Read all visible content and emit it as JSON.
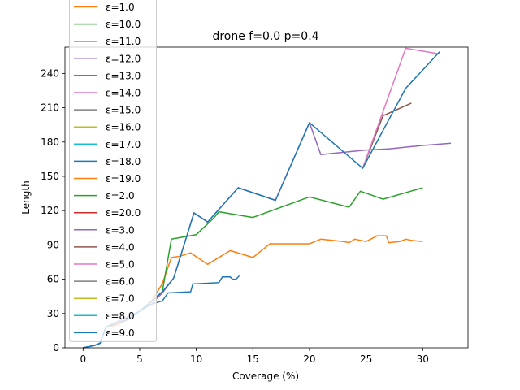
{
  "chart_data": {
    "type": "line",
    "title": "drone f=0.0 p=0.4",
    "xlabel": "Coverage (%)",
    "ylabel": "Length",
    "xlim": [
      -1.6,
      34.0
    ],
    "ylim": [
      0,
      263
    ],
    "xticks": [
      0,
      5,
      10,
      15,
      20,
      25,
      30
    ],
    "yticks": [
      0,
      30,
      60,
      90,
      120,
      150,
      180,
      210,
      240
    ],
    "grid": false,
    "legend_position": "upper-left",
    "series": [
      {
        "name": "ε=1.0",
        "color": "#ff7f0e",
        "points": [
          [
            0,
            0
          ],
          [
            1,
            2
          ],
          [
            1.5,
            4
          ],
          [
            2,
            18
          ],
          [
            3,
            20
          ],
          [
            4,
            25
          ],
          [
            5,
            32
          ],
          [
            6,
            40
          ],
          [
            7,
            56
          ],
          [
            7.8,
            79
          ],
          [
            8.5,
            80
          ],
          [
            9.5,
            83
          ],
          [
            11,
            73
          ],
          [
            13,
            85
          ],
          [
            15,
            79
          ],
          [
            16.5,
            91
          ],
          [
            19,
            91
          ],
          [
            20,
            91
          ],
          [
            21,
            95
          ],
          [
            23,
            93
          ],
          [
            23.5,
            92
          ],
          [
            24,
            95
          ],
          [
            25,
            93
          ],
          [
            26,
            98
          ],
          [
            26.8,
            98
          ],
          [
            27,
            92
          ],
          [
            28,
            93
          ],
          [
            28.5,
            95
          ],
          [
            29,
            94
          ],
          [
            30,
            93
          ]
        ]
      },
      {
        "name": "ε=10.0",
        "color": "#2ca02c",
        "points": [
          [
            0,
            0
          ],
          [
            1,
            2
          ],
          [
            1.5,
            4
          ],
          [
            2,
            18
          ],
          [
            5,
            32
          ],
          [
            7,
            49
          ],
          [
            7.8,
            95
          ],
          [
            10,
            99
          ],
          [
            11.5,
            113
          ],
          [
            12,
            119
          ],
          [
            15,
            114
          ],
          [
            20,
            132
          ],
          [
            23.5,
            123
          ],
          [
            24.5,
            137
          ],
          [
            26.5,
            130
          ],
          [
            30,
            140
          ]
        ]
      },
      {
        "name": "ε=11.0",
        "color": "#d62728",
        "points": []
      },
      {
        "name": "ε=12.0",
        "color": "#9467bd",
        "points": [
          [
            0,
            0
          ],
          [
            1,
            2
          ],
          [
            1.5,
            4
          ],
          [
            2,
            18
          ],
          [
            5,
            32
          ],
          [
            6,
            38
          ],
          [
            7,
            48
          ],
          [
            8,
            61
          ],
          [
            9.8,
            118
          ],
          [
            11,
            110
          ],
          [
            13.7,
            140
          ],
          [
            17,
            129
          ],
          [
            20,
            197
          ],
          [
            21,
            169
          ],
          [
            24,
            172
          ],
          [
            25,
            173
          ],
          [
            27,
            174
          ],
          [
            29,
            176
          ],
          [
            30,
            177
          ],
          [
            32.5,
            179
          ]
        ]
      },
      {
        "name": "ε=13.0",
        "color": "#8c564b",
        "points": [
          [
            24.7,
            157
          ],
          [
            26.5,
            203
          ],
          [
            29,
            214
          ]
        ]
      },
      {
        "name": "ε=14.0",
        "color": "#e377c2",
        "points": [
          [
            24.7,
            157
          ],
          [
            28.5,
            262
          ],
          [
            31.5,
            257
          ]
        ]
      },
      {
        "name": "ε=15.0",
        "color": "#7f7f7f",
        "points": []
      },
      {
        "name": "ε=16.0",
        "color": "#bcbd22",
        "points": []
      },
      {
        "name": "ε=17.0",
        "color": "#17becf",
        "points": []
      },
      {
        "name": "ε=18.0",
        "color": "#1f77b4",
        "points": [
          [
            0,
            0
          ],
          [
            1,
            2
          ],
          [
            1.5,
            4
          ],
          [
            2,
            18
          ],
          [
            4,
            25
          ],
          [
            5,
            32
          ],
          [
            7,
            49
          ],
          [
            8,
            61
          ],
          [
            9.8,
            118
          ],
          [
            11,
            110
          ],
          [
            13.7,
            140
          ],
          [
            17,
            129
          ],
          [
            20,
            197
          ],
          [
            24.7,
            157
          ],
          [
            28.5,
            227
          ],
          [
            31.5,
            259
          ]
        ]
      },
      {
        "name": "ε=19.0",
        "color": "#ff7f0e",
        "points": []
      },
      {
        "name": "ε=2.0",
        "color": "#2ca02c",
        "points": []
      },
      {
        "name": "ε=20.0",
        "color": "#d62728",
        "points": []
      },
      {
        "name": "ε=3.0",
        "color": "#9467bd",
        "points": []
      },
      {
        "name": "ε=4.0",
        "color": "#8c564b",
        "points": []
      },
      {
        "name": "ε=5.0",
        "color": "#e377c2",
        "points": []
      },
      {
        "name": "ε=6.0",
        "color": "#7f7f7f",
        "points": []
      },
      {
        "name": "ε=7.0",
        "color": "#bcbd22",
        "points": []
      },
      {
        "name": "ε=8.0",
        "color": "#17becf",
        "points": []
      },
      {
        "name": "ε=9.0",
        "color": "#1f77b4",
        "points": [
          [
            0,
            0
          ],
          [
            1,
            2
          ],
          [
            1.5,
            4
          ],
          [
            2,
            18
          ],
          [
            4,
            25
          ],
          [
            5,
            32
          ],
          [
            6,
            38
          ],
          [
            7,
            41
          ],
          [
            7.5,
            48
          ],
          [
            9.5,
            49
          ],
          [
            9.7,
            56
          ],
          [
            10,
            56
          ],
          [
            12,
            57
          ],
          [
            12.3,
            62
          ],
          [
            13,
            62
          ],
          [
            13.2,
            60
          ],
          [
            13.5,
            60
          ],
          [
            13.8,
            63
          ]
        ]
      }
    ]
  }
}
